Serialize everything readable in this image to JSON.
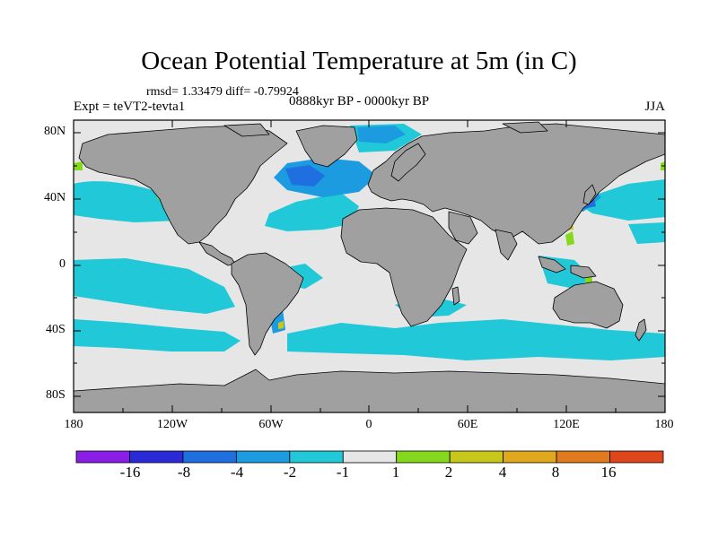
{
  "title": "Ocean Potential Temperature at 5m (in C)",
  "subtitle_stats": "rmsd= 1.33479 diff= -0.79924",
  "left_label": "Expt = teVT2-tevta1",
  "center_label": "0888kyr BP - 0000kyr BP",
  "right_label": "JJA",
  "axes": {
    "x_ticks": [
      "180",
      "120W",
      "60W",
      "0",
      "60E",
      "120E",
      "180"
    ],
    "y_ticks": [
      "80N",
      "40N",
      "0",
      "40S",
      "80S"
    ]
  },
  "colorbar": {
    "colors": [
      "#8a1ee6",
      "#2a2ad8",
      "#1f6fe0",
      "#1c9be0",
      "#20c8d8",
      "#e6e6e6",
      "#86d81c",
      "#c8c81c",
      "#e0a81c",
      "#e07a1c",
      "#e0461c"
    ],
    "labels": [
      "-16",
      "-8",
      "-4",
      "-2",
      "-1",
      "1",
      "2",
      "4",
      "8",
      "16"
    ]
  },
  "palette": {
    "land": "#a0a0a0",
    "ocean_neutral": "#e6e6e6",
    "cool_light": "#20c8d8",
    "cool_mid": "#1c9be0",
    "cool_strong": "#1f6fe0",
    "cool_extreme": "#2a2ad8",
    "warm_light": "#86d81c",
    "warm_mid": "#c8c81c"
  }
}
